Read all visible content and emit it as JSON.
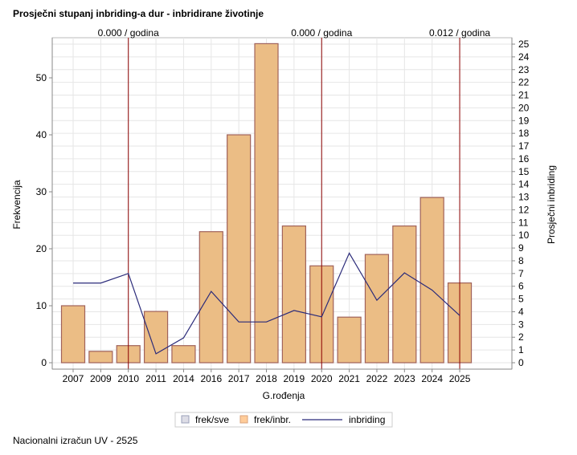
{
  "title": "Prosječni stupanj inbriding-a dur - inbridirane životinje",
  "footer": "Nacionalni izračun UV - 2525",
  "chart_data": {
    "type": "bar",
    "title": "Prosječni stupanj inbriding-a dur - inbridirane životinje",
    "xlabel": "G.rođenja",
    "ylabel": "Frekvencija",
    "y2label": "Prosječni inbriding",
    "categories": [
      "2007",
      "2009",
      "2010",
      "2011",
      "2014",
      "2016",
      "2017",
      "2018",
      "2019",
      "2020",
      "2021",
      "2022",
      "2023",
      "2024",
      "2025"
    ],
    "series": [
      {
        "name": "frek/inbr.",
        "type": "bar",
        "axis": "left",
        "color": "#EBBD85",
        "values": [
          10,
          2,
          3,
          9,
          3,
          23,
          40,
          56,
          24,
          17,
          8,
          19,
          24,
          29,
          14
        ]
      },
      {
        "name": "inbriding",
        "type": "line",
        "axis": "right",
        "color": "#2B2B7A",
        "values": [
          6.25,
          6.25,
          7.0,
          0.7,
          1.95,
          5.6,
          3.2,
          3.2,
          4.1,
          3.6,
          8.6,
          4.9,
          7.05,
          5.7,
          3.7
        ]
      }
    ],
    "legend": [
      {
        "name": "frek/sve",
        "color": "#DDDDE6"
      },
      {
        "name": "frek/inbr.",
        "color": "#FFCC99"
      },
      {
        "name": "inbriding",
        "color": "#2B2B7A"
      }
    ],
    "legend_position": "bottom",
    "ylim": [
      0,
      57
    ],
    "yticks": [
      0,
      10,
      20,
      30,
      40,
      50
    ],
    "y2lim": [
      0,
      25.5
    ],
    "y2ticks": [
      0,
      1,
      2,
      3,
      4,
      5,
      6,
      7,
      8,
      9,
      10,
      11,
      12,
      13,
      14,
      15,
      16,
      17,
      18,
      19,
      20,
      21,
      22,
      23,
      24,
      25
    ],
    "grid": true,
    "reference_lines": [
      {
        "x": "2010",
        "label": "0.000 / godina"
      },
      {
        "x": "2020",
        "label": "0.000 / godina"
      },
      {
        "x": "2025",
        "label": "0.012 / godina"
      }
    ],
    "reference_color": "#8B0000"
  }
}
